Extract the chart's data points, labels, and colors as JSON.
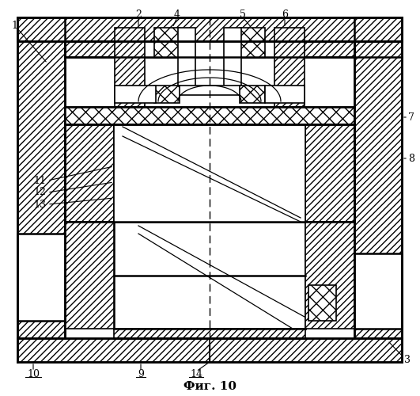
{
  "title": "Фиг. 10",
  "fig_width": 5.31,
  "fig_height": 5.0,
  "dpi": 100,
  "bg_color": "#ffffff",
  "line_color": "#000000"
}
